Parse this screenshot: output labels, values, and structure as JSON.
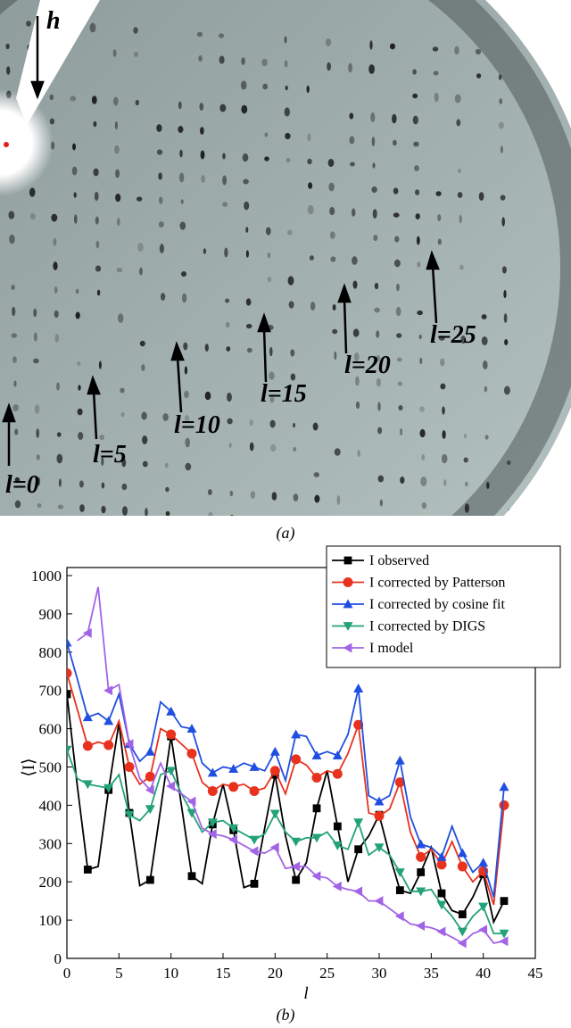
{
  "image_labels": {
    "h": "h",
    "l0": "l=0",
    "l5": "l=5",
    "l10": "l=10",
    "l15": "l=15",
    "l20": "l=20",
    "l25": "l=25",
    "caption": "(a)"
  },
  "chart_data": {
    "type": "line",
    "caption": "(b)",
    "x_label": "l",
    "y_label": "⟨I⟩",
    "x": [
      0,
      1,
      2,
      3,
      4,
      5,
      6,
      7,
      8,
      9,
      10,
      11,
      12,
      13,
      14,
      15,
      16,
      17,
      18,
      19,
      20,
      21,
      22,
      23,
      24,
      25,
      26,
      27,
      28,
      29,
      30,
      31,
      32,
      33,
      34,
      35,
      36,
      37,
      38,
      39,
      40,
      41,
      42
    ],
    "series": [
      {
        "name": "I observed",
        "color": "#000000",
        "marker": "square",
        "values": [
          690,
          450,
          232,
          240,
          440,
          615,
          380,
          190,
          205,
          390,
          580,
          400,
          215,
          195,
          350,
          455,
          335,
          185,
          195,
          340,
          480,
          320,
          205,
          250,
          392,
          490,
          345,
          200,
          285,
          320,
          375,
          270,
          178,
          170,
          225,
          290,
          170,
          125,
          115,
          160,
          220,
          95,
          150
        ]
      },
      {
        "name": "I corrected by Patterson",
        "color": "#e8321e",
        "marker": "circle",
        "values": [
          745,
          650,
          555,
          565,
          557,
          620,
          500,
          455,
          475,
          600,
          585,
          560,
          535,
          460,
          437,
          455,
          448,
          455,
          437,
          445,
          490,
          430,
          520,
          505,
          472,
          490,
          482,
          535,
          610,
          380,
          372,
          390,
          460,
          330,
          265,
          285,
          245,
          305,
          240,
          200,
          228,
          140,
          400
        ]
      },
      {
        "name": "I corrected by cosine fit",
        "color": "#1f4fe0",
        "marker": "triangle-up",
        "values": [
          825,
          730,
          630,
          640,
          620,
          690,
          560,
          515,
          540,
          670,
          645,
          605,
          600,
          510,
          485,
          500,
          495,
          510,
          500,
          490,
          540,
          465,
          585,
          580,
          530,
          540,
          530,
          585,
          705,
          425,
          410,
          425,
          517,
          370,
          298,
          290,
          265,
          345,
          275,
          225,
          250,
          160,
          448
        ]
      },
      {
        "name": "I corrected by DIGS",
        "color": "#23a27a",
        "marker": "triangle-down",
        "values": [
          545,
          470,
          455,
          450,
          445,
          480,
          375,
          360,
          390,
          480,
          490,
          430,
          380,
          330,
          355,
          360,
          340,
          325,
          310,
          325,
          378,
          330,
          305,
          315,
          315,
          330,
          295,
          285,
          355,
          270,
          290,
          270,
          225,
          175,
          175,
          180,
          140,
          110,
          70,
          110,
          135,
          65,
          65
        ]
      },
      {
        "name": "I model",
        "color": "#a264e6",
        "marker": "triangle-left",
        "values": [
          null,
          830,
          850,
          970,
          700,
          715,
          560,
          470,
          440,
          510,
          450,
          430,
          410,
          340,
          325,
          320,
          310,
          295,
          280,
          275,
          290,
          235,
          240,
          240,
          215,
          210,
          188,
          180,
          175,
          150,
          150,
          130,
          110,
          90,
          85,
          80,
          70,
          55,
          40,
          65,
          75,
          40,
          45
        ]
      }
    ],
    "xlim": [
      0,
      45
    ],
    "ylim": [
      0,
      1000
    ],
    "xticks": [
      0,
      5,
      10,
      15,
      20,
      25,
      30,
      35,
      40,
      45
    ],
    "yticks": [
      0,
      100,
      200,
      300,
      400,
      500,
      600,
      700,
      800,
      900,
      1000
    ],
    "legend": "top-right"
  }
}
